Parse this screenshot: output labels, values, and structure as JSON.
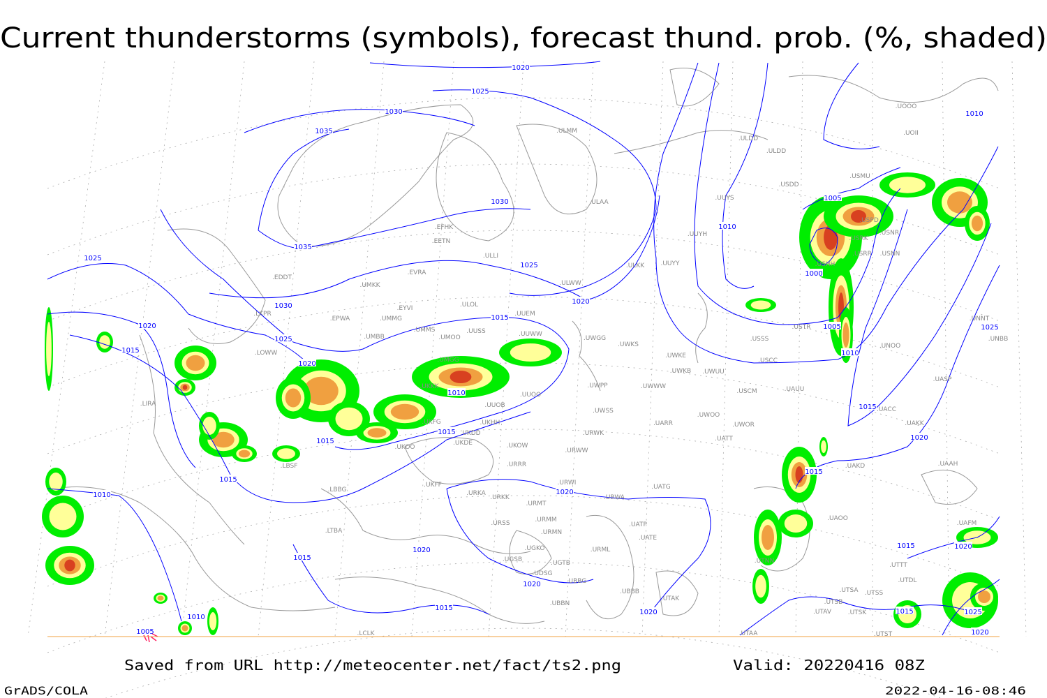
{
  "title": "Current thunderstorms (symbols), forecast thund. prob. (%, shaded)",
  "footer": {
    "saved_from": "Saved from URL http://meteocenter.net/fact/ts2.png",
    "valid": "Valid: 20220416 08Z",
    "software": "GrADS/COLA",
    "timestamp": "2022-04-16-08:46"
  },
  "colors": {
    "isobar": "#0000ff",
    "coastline": "#999999",
    "grid": "#aaaaaa",
    "prob_low": "#00ee00",
    "prob_mid": "#ffff99",
    "prob_high": "#f0a040",
    "prob_max": "#d84020",
    "thunderstorm_symbol": "#ff2060"
  },
  "isobar_labels": [
    "1020",
    "1025",
    "1030",
    "1035",
    "1035",
    "1030",
    "1025",
    "1020",
    "1030",
    "1025",
    "1020",
    "1015",
    "1010",
    "1015",
    "1015",
    "1025",
    "1020",
    "1015",
    "1015",
    "1010",
    "1020",
    "1020",
    "1015",
    "1020",
    "1015",
    "1020",
    "1010",
    "1005",
    "1010",
    "1005",
    "1000",
    "1005",
    "1010",
    "1015",
    "1020",
    "1015",
    "1010",
    "1025",
    "1015",
    "1020",
    "1025",
    "1020",
    "1015"
  ],
  "stations": [
    "ULMM",
    "ULDD",
    "USDD",
    "USMU",
    "UOOO",
    "UOII",
    "ULAA",
    "UUYS",
    "UUYH",
    "EFHK",
    "EETN",
    "ULLI",
    "EVRA",
    "ULOL",
    "UUYY",
    "ULKK",
    "ULWW",
    "UMKK",
    "EDDT",
    "EYVI",
    "UMMG",
    "EPWA",
    "LKPR",
    "UUEM",
    "UMMS",
    "UMOO",
    "UUSS",
    "UMBB",
    "LOWW",
    "UUWW",
    "UWGG",
    "UWKS",
    "UWKE",
    "UWKB",
    "UWUU",
    "USSS",
    "USCC",
    "USCM",
    "UAUU",
    "UWPP",
    "UWWW",
    "UMGG",
    "UKKK",
    "UUOO",
    "UUOB",
    "UWSS",
    "UARR",
    "UWOO",
    "UWOR",
    "UATT",
    "UKHH",
    "UKDD",
    "UKDE",
    "UKFG",
    "UKOO",
    "UKOW",
    "URWW",
    "URWK",
    "URRR",
    "USRR",
    "USNR",
    "USNN",
    "USHH",
    "USRK",
    "USPD",
    "USTR",
    "UNOO",
    "UNNT",
    "UNBB",
    "UASP",
    "UACC",
    "UAKK",
    "UAKD",
    "UAAH",
    "UAOO",
    "UATG",
    "URWI",
    "URWA",
    "URKA",
    "URKK",
    "URMT",
    "URMM",
    "URMN",
    "URSS",
    "UATE",
    "UATP",
    "URML",
    "UGKO",
    "UGTB",
    "UGSB",
    "UDSG",
    "UBBG",
    "UBBN",
    "UBBB",
    "UTAK",
    "UTNN",
    "UTSA",
    "UTSS",
    "UTSB",
    "UTAV",
    "UTSK",
    "UTAA",
    "UTST",
    "UTDL",
    "UTTT",
    "UAFM",
    "LBSF",
    "LBBG",
    "LTBA",
    "LIRA",
    "UKFF",
    "LCLK",
    "ULDD"
  ]
}
